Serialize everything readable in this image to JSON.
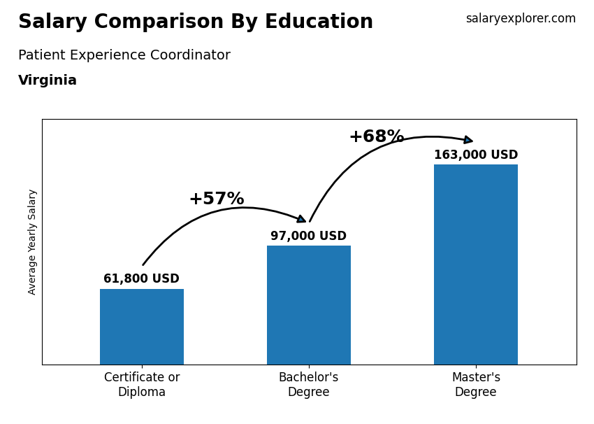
{
  "chart_data": {
    "type": "bar",
    "title": "Salary Comparison By Education",
    "subtitle": "Patient Experience Coordinator",
    "annotations": [
      "Virginia",
      "salaryexplorer.com",
      {
        "text": "+57%",
        "from": "Certificate or\nDiploma",
        "to": "Bachelor's\nDegree"
      },
      {
        "text": "+68%",
        "from": "Bachelor's\nDegree",
        "to": "Master's\nDegree"
      }
    ],
    "y_label": "Average Yearly Salary",
    "categories": [
      "Certificate or\nDiploma",
      "Bachelor's\nDegree",
      "Master's\nDegree"
    ],
    "values": [
      61800,
      97000,
      163000
    ],
    "value_labels": [
      "61,800 USD",
      "97,000 USD",
      "163,000 USD"
    ],
    "data_labels": true,
    "ylim": [
      0,
      200000
    ],
    "tick_labels": "x",
    "grid": false
  }
}
